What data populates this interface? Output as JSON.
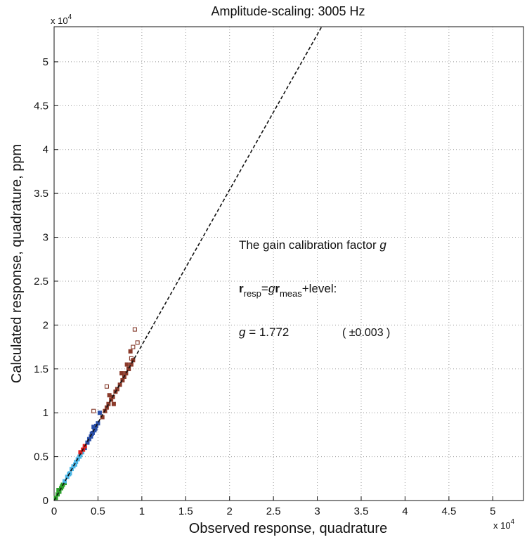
{
  "chart_data": {
    "type": "scatter",
    "title": "Amplitude-scaling:  3005 Hz",
    "xlabel": "Observed response, quadrature",
    "ylabel": "Calculated response, quadrature,  ppm",
    "x_multiplier": {
      "base": "x 10",
      "exp": "4"
    },
    "y_multiplier": {
      "base": "x 10",
      "exp": "4"
    },
    "xlim": [
      0,
      5.35
    ],
    "ylim": [
      0,
      5.4
    ],
    "xticks": [
      0,
      0.5,
      1,
      1.5,
      2,
      2.5,
      3,
      3.5,
      4,
      4.5,
      5
    ],
    "yticks": [
      0,
      0.5,
      1,
      1.5,
      2,
      2.5,
      3,
      3.5,
      4,
      4.5,
      5
    ],
    "grid": true,
    "fit_line": {
      "x": [
        0,
        3.05
      ],
      "values": [
        0,
        5.4
      ],
      "color": "#111111"
    },
    "series": [
      {
        "color": "#2ca02c",
        "filled": true,
        "x": [
          0.02,
          0.04,
          0.06,
          0.08,
          0.1,
          0.12,
          0.05,
          0.09
        ],
        "values": [
          0.03,
          0.07,
          0.1,
          0.14,
          0.18,
          0.2,
          0.12,
          0.16
        ]
      },
      {
        "color": "#4db8e8",
        "filled": true,
        "x": [
          0.12,
          0.15,
          0.18,
          0.2,
          0.22,
          0.25,
          0.27,
          0.3,
          0.17,
          0.24,
          0.29,
          0.32
        ],
        "values": [
          0.22,
          0.27,
          0.31,
          0.36,
          0.39,
          0.44,
          0.47,
          0.52,
          0.3,
          0.41,
          0.5,
          0.55
        ]
      },
      {
        "color": "#2a4fa8",
        "filled": true,
        "x": [
          0.35,
          0.38,
          0.4,
          0.42,
          0.44,
          0.46,
          0.48,
          0.5,
          0.43,
          0.47,
          0.52,
          0.45
        ],
        "values": [
          0.6,
          0.66,
          0.7,
          0.73,
          0.77,
          0.8,
          0.85,
          0.88,
          0.76,
          0.82,
          1.0,
          0.84
        ]
      },
      {
        "color": "#e02020",
        "filled": true,
        "x": [
          0.3,
          0.33,
          0.35
        ],
        "values": [
          0.55,
          0.58,
          0.62
        ]
      },
      {
        "color": "#8b3a2a",
        "filled": true,
        "x": [
          0.55,
          0.58,
          0.6,
          0.62,
          0.65,
          0.67,
          0.7,
          0.72,
          0.75,
          0.78,
          0.8,
          0.82,
          0.85,
          0.88,
          0.9,
          0.63,
          0.68,
          0.77,
          0.83,
          0.87
        ],
        "values": [
          0.95,
          1.02,
          1.06,
          1.1,
          1.15,
          1.18,
          1.24,
          1.27,
          1.32,
          1.37,
          1.41,
          1.45,
          1.5,
          1.55,
          1.6,
          1.2,
          1.1,
          1.45,
          1.55,
          1.7
        ]
      },
      {
        "color": "#7a2a1a",
        "filled": false,
        "x": [
          0.92,
          0.95,
          0.9,
          0.88,
          0.85,
          0.6,
          0.45
        ],
        "values": [
          1.95,
          1.8,
          1.75,
          1.62,
          1.5,
          1.3,
          1.02
        ]
      }
    ],
    "annotation": {
      "line1": {
        "text": "The gain calibration factor ",
        "var": "g"
      },
      "line2": {
        "r1": "r",
        "sub1": "resp",
        "eq": "=",
        "var": "g",
        "r2": "r",
        "sub2": "meas",
        "rest": "+level:"
      },
      "line3": {
        "var": "g",
        "value": " = 1.772",
        "error": "( ±0.003 )"
      }
    }
  }
}
